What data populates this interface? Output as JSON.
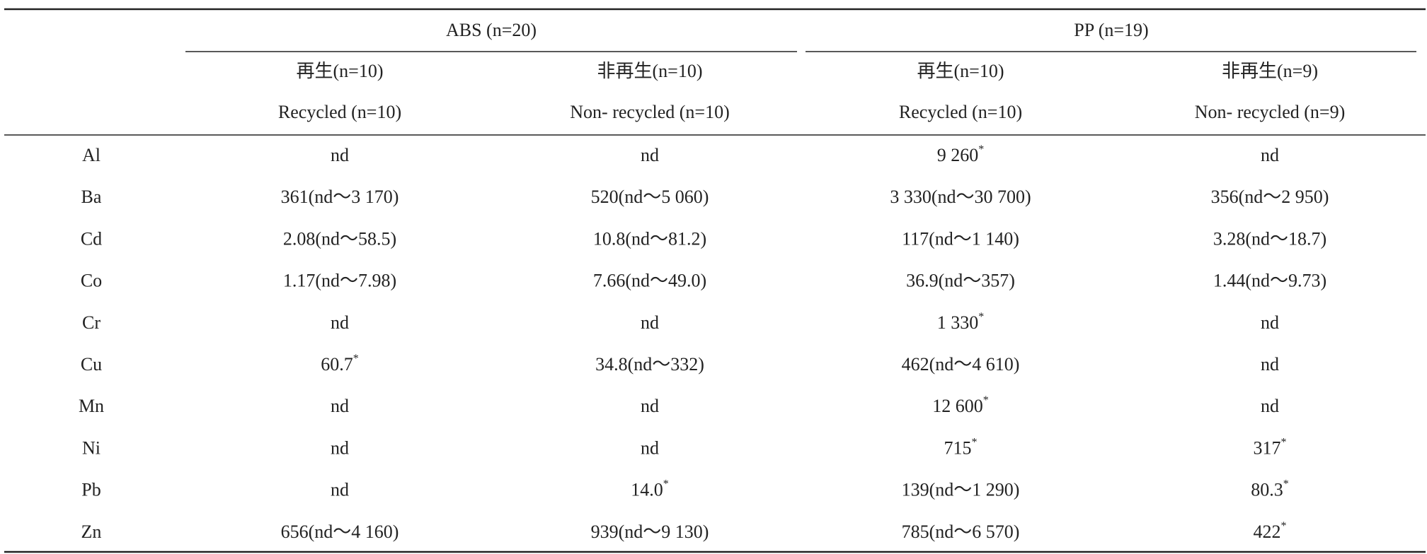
{
  "table": {
    "group_headers": [
      "ABS (n=20)",
      "PP (n=19)"
    ],
    "sub_headers": [
      [
        "再生(n=10)",
        "Recycled (n=10)"
      ],
      [
        "非再生(n=10)",
        "Non- recycled (n=10)"
      ],
      [
        "再生(n=10)",
        "Recycled (n=10)"
      ],
      [
        "非再生(n=9)",
        "Non- recycled (n=9)"
      ]
    ],
    "rows": [
      [
        "Al",
        "nd",
        "nd",
        {
          "text": "9 260",
          "mark": "*"
        },
        "nd"
      ],
      [
        "Ba",
        "361(nd～3 170)",
        "520(nd～5 060)",
        "3 330(nd～30 700)",
        "356(nd～2 950)"
      ],
      [
        "Cd",
        "2.08(nd～58.5)",
        "10.8(nd～81.2)",
        "117(nd～1 140)",
        "3.28(nd～18.7)"
      ],
      [
        "Co",
        "1.17(nd～7.98)",
        "7.66(nd～49.0)",
        "36.9(nd～357)",
        "1.44(nd～9.73)"
      ],
      [
        "Cr",
        "nd",
        "nd",
        {
          "text": "1 330",
          "mark": "*"
        },
        "nd"
      ],
      [
        "Cu",
        {
          "text": "60.7",
          "mark": "*"
        },
        "34.8(nd～332)",
        "462(nd～4 610)",
        "nd"
      ],
      [
        "Mn",
        "nd",
        "nd",
        {
          "text": "12 600",
          "mark": "*"
        },
        "nd"
      ],
      [
        "Ni",
        "nd",
        "nd",
        {
          "text": "715",
          "mark": "*"
        },
        {
          "text": "317",
          "mark": "*"
        }
      ],
      [
        "Pb",
        "nd",
        {
          "text": "14.0",
          "mark": "*"
        },
        "139(nd～1 290)",
        {
          "text": "80.3",
          "mark": "*"
        }
      ],
      [
        "Zn",
        "656(nd～4 160)",
        "939(nd～9 130)",
        "785(nd～6 570)",
        {
          "text": "422",
          "mark": "*"
        }
      ]
    ]
  }
}
